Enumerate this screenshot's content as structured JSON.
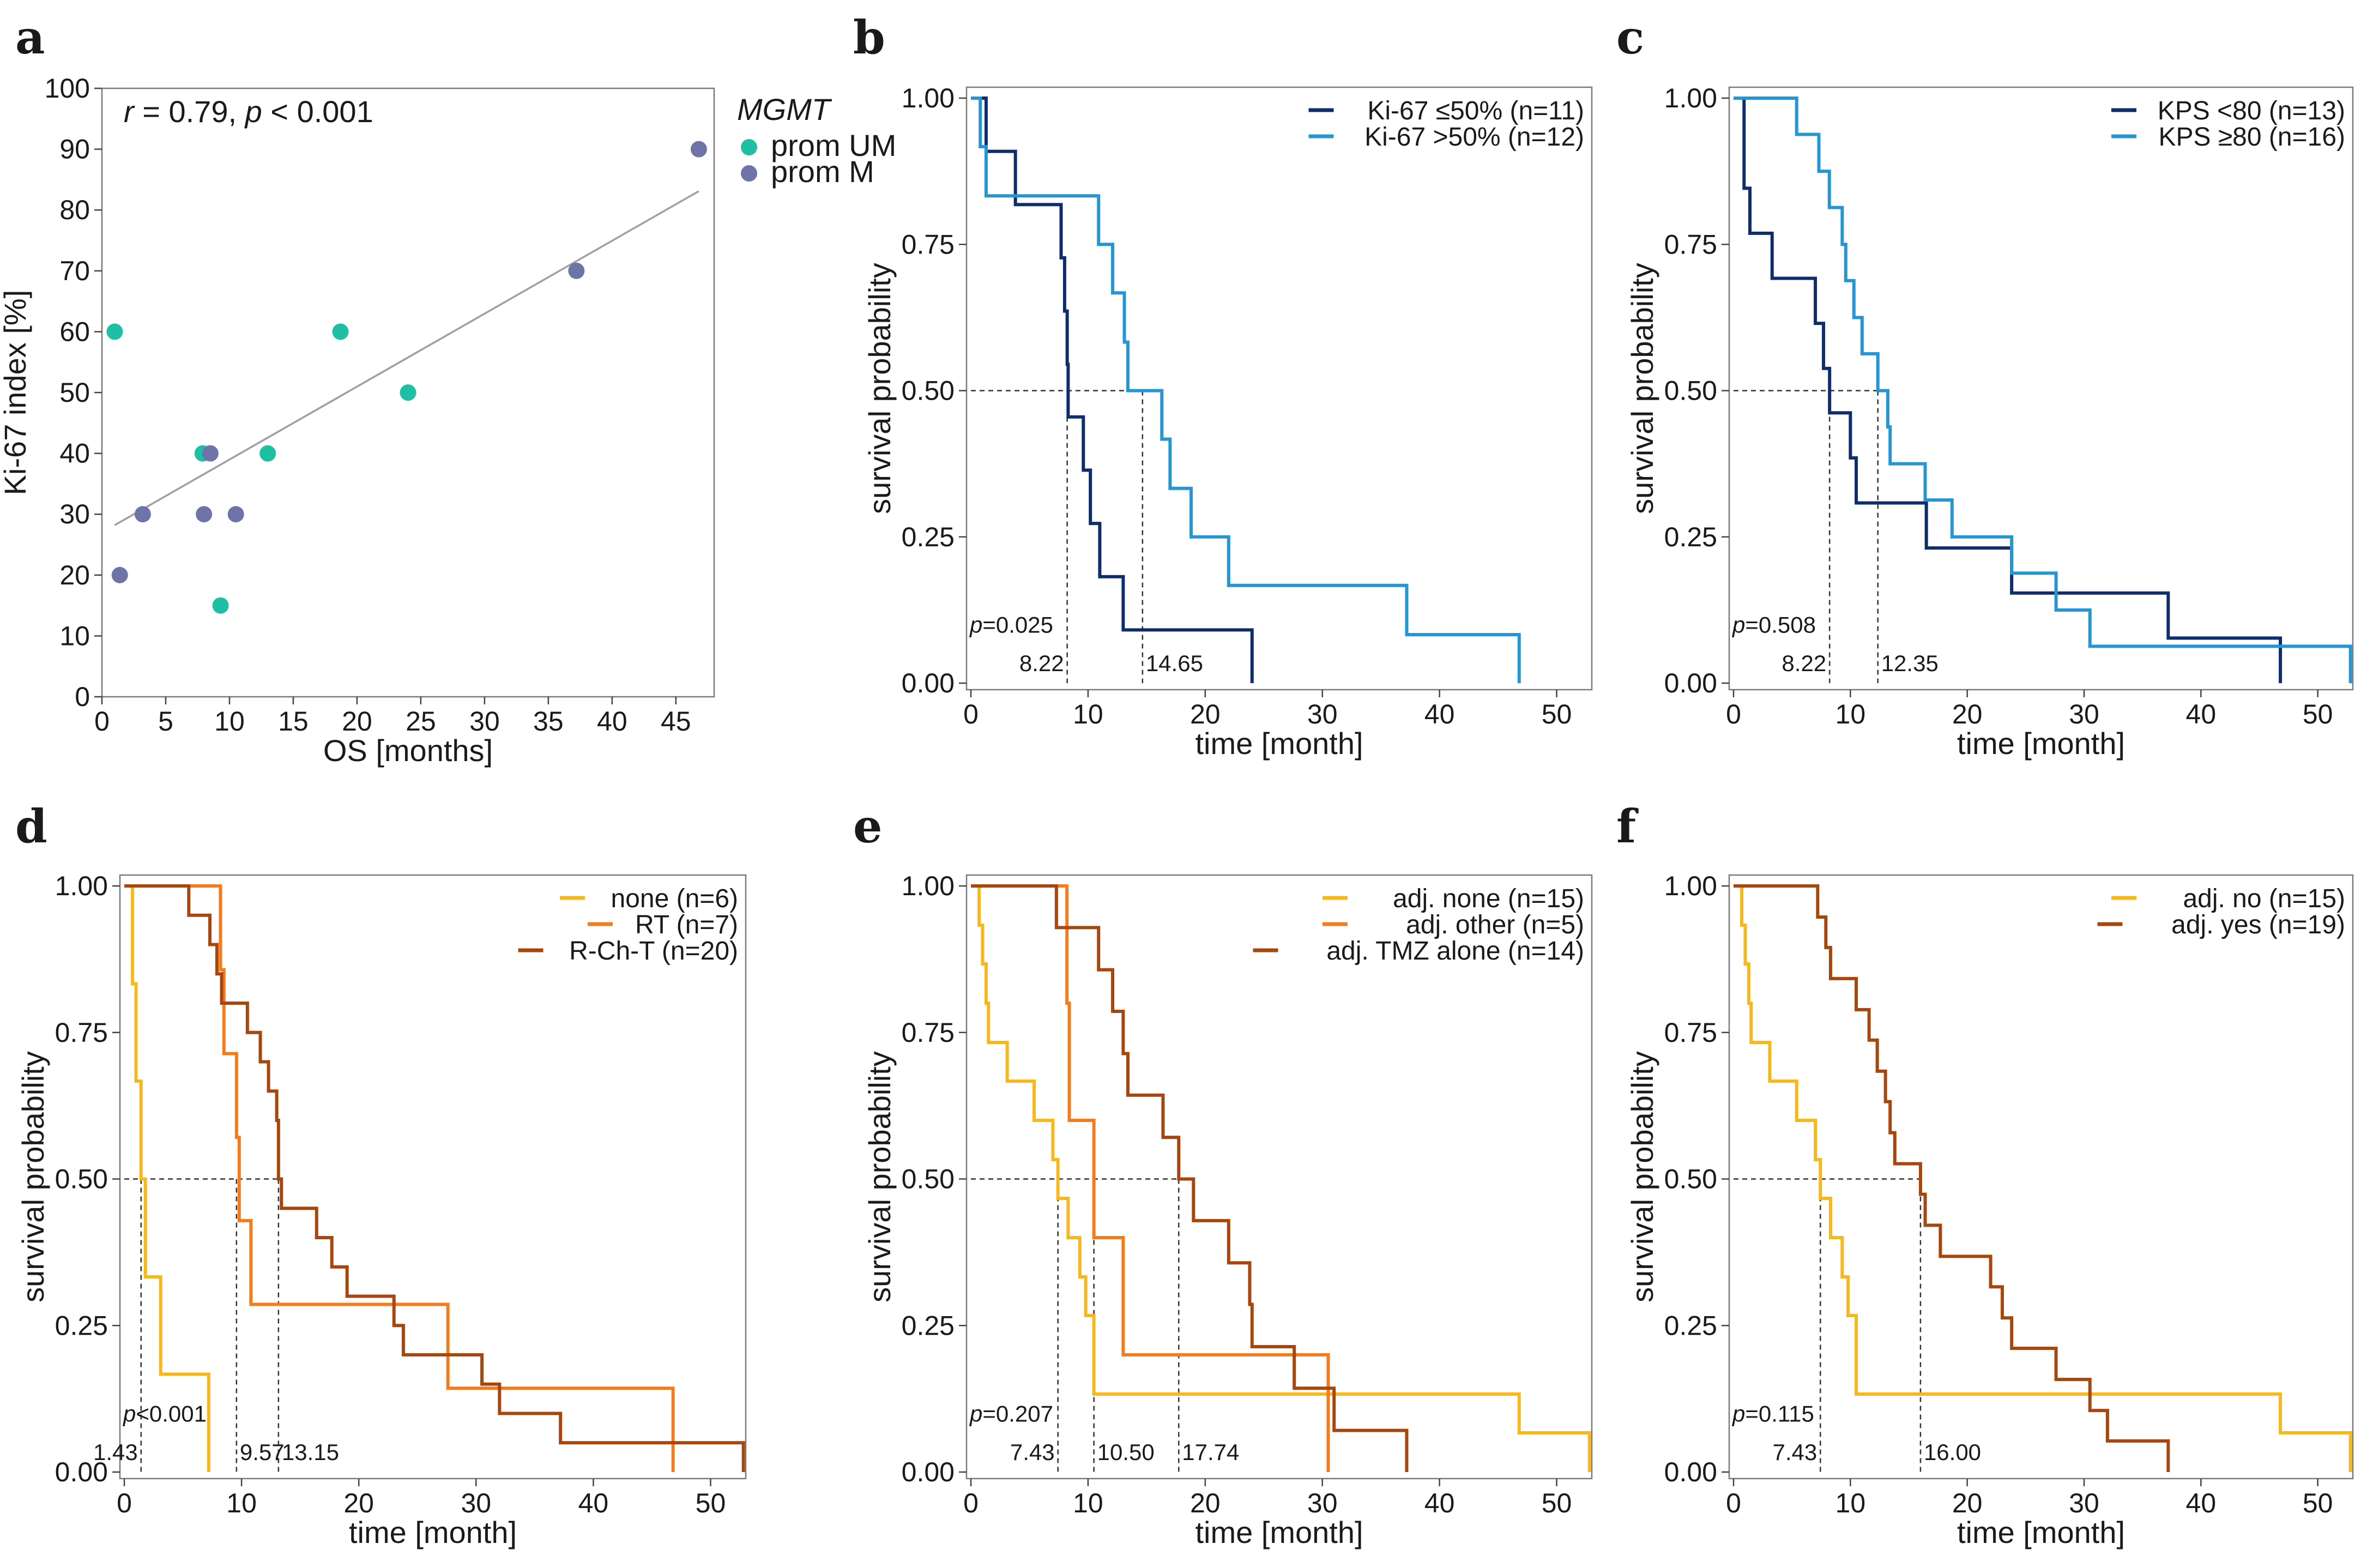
{
  "chart_data": [
    {
      "panel": "a",
      "type": "scatter",
      "xlabel": "OS [months]",
      "ylabel": "Ki-67 index [%]",
      "xlim": [
        0,
        48
      ],
      "ylim": [
        0,
        100
      ],
      "xticks": [
        0,
        5,
        10,
        15,
        20,
        25,
        30,
        35,
        40,
        45
      ],
      "yticks": [
        0,
        10,
        20,
        30,
        40,
        50,
        60,
        70,
        80,
        90,
        100
      ],
      "annotation_r": "r",
      "annotation_rest": " = 0.79, ",
      "annotation_p": "p",
      "annotation_pval": " < 0.001",
      "legend_title": "MGMT",
      "series": [
        {
          "name": "prom UM",
          "color": "#1fbfa3",
          "points": [
            [
              1.0,
              60
            ],
            [
              7.9,
              40
            ],
            [
              9.3,
              15
            ],
            [
              13.0,
              40
            ],
            [
              18.7,
              60
            ],
            [
              24.0,
              50
            ]
          ]
        },
        {
          "name": "prom M",
          "color": "#6f74a8",
          "points": [
            [
              1.4,
              20
            ],
            [
              3.2,
              30
            ],
            [
              8.0,
              30
            ],
            [
              8.5,
              40
            ],
            [
              10.5,
              30
            ],
            [
              37.2,
              70
            ],
            [
              46.8,
              90
            ]
          ]
        }
      ],
      "fit": {
        "from": [
          1.0,
          28.2
        ],
        "to": [
          46.8,
          83.1
        ],
        "color": "#a0a0a0"
      }
    },
    {
      "panel": "b",
      "type": "line",
      "xlabel": "time [month]",
      "ylabel": "survival probability",
      "xlim": [
        0,
        53
      ],
      "ylim": [
        0,
        1
      ],
      "xticks": [
        0,
        10,
        20,
        30,
        40,
        50
      ],
      "yticks": [
        "0.00",
        "0.25",
        "0.50",
        "0.75",
        "1.00"
      ],
      "pvalue_prefix": "p",
      "pvalue": "=0.025",
      "medians": [
        8.22,
        14.65
      ],
      "median_labels": [
        "8.22",
        "14.65"
      ],
      "series": [
        {
          "name": "Ki-67 ≤50% (n=11)",
          "color": "#0f2d6b",
          "steps": [
            [
              0,
              1.0
            ],
            [
              1.3,
              0.909
            ],
            [
              3.8,
              0.818
            ],
            [
              7.7,
              0.727
            ],
            [
              8.0,
              0.636
            ],
            [
              8.22,
              0.545
            ],
            [
              8.3,
              0.455
            ],
            [
              9.6,
              0.364
            ],
            [
              10.2,
              0.273
            ],
            [
              11.0,
              0.182
            ],
            [
              13.0,
              0.091
            ],
            [
              24.0,
              0.0
            ]
          ]
        },
        {
          "name": "Ki-67 >50% (n=12)",
          "color": "#2596d1",
          "steps": [
            [
              0,
              1.0
            ],
            [
              0.8,
              0.917
            ],
            [
              1.3,
              0.833
            ],
            [
              10.9,
              0.75
            ],
            [
              12.1,
              0.667
            ],
            [
              13.1,
              0.583
            ],
            [
              13.4,
              0.5
            ],
            [
              16.3,
              0.417
            ],
            [
              17.0,
              0.333
            ],
            [
              18.8,
              0.25
            ],
            [
              22.0,
              0.167
            ],
            [
              37.2,
              0.083
            ],
            [
              46.8,
              0.0
            ]
          ]
        }
      ]
    },
    {
      "panel": "c",
      "type": "line",
      "xlabel": "time [month]",
      "ylabel": "survival probability",
      "xlim": [
        0,
        53
      ],
      "ylim": [
        0,
        1
      ],
      "xticks": [
        0,
        10,
        20,
        30,
        40,
        50
      ],
      "yticks": [
        "0.00",
        "0.25",
        "0.50",
        "0.75",
        "1.00"
      ],
      "pvalue_prefix": "p",
      "pvalue": "=0.508",
      "medians": [
        8.22,
        12.35
      ],
      "median_labels": [
        "8.22",
        "12.35"
      ],
      "series": [
        {
          "name": "KPS <80 (n=13)",
          "color": "#0f2d6b",
          "steps": [
            [
              0,
              1.0
            ],
            [
              0.9,
              0.846
            ],
            [
              1.4,
              0.769
            ],
            [
              3.3,
              0.692
            ],
            [
              7.0,
              0.615
            ],
            [
              7.7,
              0.538
            ],
            [
              8.22,
              0.462
            ],
            [
              10.0,
              0.385
            ],
            [
              10.5,
              0.308
            ],
            [
              16.5,
              0.231
            ],
            [
              23.8,
              0.154
            ],
            [
              37.2,
              0.077
            ],
            [
              46.8,
              0.0
            ]
          ]
        },
        {
          "name": "KPS ≥80 (n=16)",
          "color": "#2596d1",
          "steps": [
            [
              0,
              1.0
            ],
            [
              5.4,
              0.938
            ],
            [
              7.3,
              0.875
            ],
            [
              8.2,
              0.813
            ],
            [
              9.3,
              0.75
            ],
            [
              9.6,
              0.688
            ],
            [
              10.3,
              0.625
            ],
            [
              11.0,
              0.563
            ],
            [
              12.35,
              0.5
            ],
            [
              13.2,
              0.438
            ],
            [
              13.4,
              0.375
            ],
            [
              16.4,
              0.313
            ],
            [
              18.7,
              0.25
            ],
            [
              23.8,
              0.188
            ],
            [
              27.6,
              0.125
            ],
            [
              30.5,
              0.063
            ],
            [
              52.8,
              0.0
            ]
          ]
        }
      ]
    },
    {
      "panel": "d",
      "type": "line",
      "xlabel": "time [month]",
      "ylabel": "survival probability",
      "xlim": [
        0,
        53
      ],
      "ylim": [
        0,
        1
      ],
      "xticks": [
        0,
        10,
        20,
        30,
        40,
        50
      ],
      "yticks": [
        "0.00",
        "0.25",
        "0.50",
        "0.75",
        "1.00"
      ],
      "pvalue_prefix": "p",
      "pvalue": "<0.001",
      "medians": [
        1.43,
        9.57,
        13.15
      ],
      "median_labels": [
        "1.43",
        "9.57",
        "13.15"
      ],
      "series": [
        {
          "name": "none (n=6)",
          "color": "#f7b81b",
          "steps": [
            [
              0,
              1.0
            ],
            [
              0.7,
              0.833
            ],
            [
              1.0,
              0.667
            ],
            [
              1.43,
              0.5
            ],
            [
              1.8,
              0.333
            ],
            [
              3.1,
              0.167
            ],
            [
              7.2,
              0.0
            ]
          ]
        },
        {
          "name": "RT (n=7)",
          "color": "#f47c1c",
          "steps": [
            [
              0,
              1.0
            ],
            [
              8.2,
              0.857
            ],
            [
              8.5,
              0.714
            ],
            [
              9.57,
              0.571
            ],
            [
              9.8,
              0.429
            ],
            [
              10.8,
              0.286
            ],
            [
              27.6,
              0.143
            ],
            [
              46.8,
              0.0
            ]
          ]
        },
        {
          "name": "R-Ch-T (n=20)",
          "color": "#a7460d",
          "steps": [
            [
              0,
              1.0
            ],
            [
              5.5,
              0.95
            ],
            [
              7.3,
              0.9
            ],
            [
              7.9,
              0.85
            ],
            [
              8.3,
              0.8
            ],
            [
              10.5,
              0.75
            ],
            [
              11.6,
              0.7
            ],
            [
              12.3,
              0.65
            ],
            [
              13.0,
              0.6
            ],
            [
              13.15,
              0.5
            ],
            [
              13.4,
              0.45
            ],
            [
              16.4,
              0.4
            ],
            [
              17.7,
              0.35
            ],
            [
              19.0,
              0.3
            ],
            [
              23.0,
              0.25
            ],
            [
              23.8,
              0.2
            ],
            [
              30.5,
              0.15
            ],
            [
              32.0,
              0.1
            ],
            [
              37.2,
              0.05
            ],
            [
              52.8,
              0.0
            ]
          ]
        }
      ]
    },
    {
      "panel": "e",
      "type": "line",
      "xlabel": "time [month]",
      "ylabel": "survival probability",
      "xlim": [
        0,
        53
      ],
      "ylim": [
        0,
        1
      ],
      "xticks": [
        0,
        10,
        20,
        30,
        40,
        50
      ],
      "yticks": [
        "0.00",
        "0.25",
        "0.50",
        "0.75",
        "1.00"
      ],
      "pvalue_prefix": "p",
      "pvalue": "=0.207",
      "medians": [
        7.43,
        10.5,
        17.74
      ],
      "median_labels": [
        "7.43",
        "10.50",
        "17.74"
      ],
      "series": [
        {
          "name": "adj. none (n=15)",
          "color": "#f7b81b",
          "steps": [
            [
              0,
              1.0
            ],
            [
              0.7,
              0.933
            ],
            [
              1.0,
              0.867
            ],
            [
              1.3,
              0.8
            ],
            [
              1.5,
              0.733
            ],
            [
              3.1,
              0.667
            ],
            [
              5.4,
              0.6
            ],
            [
              7.0,
              0.533
            ],
            [
              7.43,
              0.467
            ],
            [
              8.3,
              0.4
            ],
            [
              9.3,
              0.333
            ],
            [
              9.8,
              0.267
            ],
            [
              10.5,
              0.133
            ],
            [
              46.8,
              0.067
            ],
            [
              52.8,
              0.0
            ]
          ]
        },
        {
          "name": "adj. other (n=5)",
          "color": "#f47c1c",
          "steps": [
            [
              0,
              1.0
            ],
            [
              8.2,
              0.8
            ],
            [
              8.4,
              0.6
            ],
            [
              10.5,
              0.4
            ],
            [
              13.0,
              0.2
            ],
            [
              30.5,
              0.0
            ]
          ]
        },
        {
          "name": "adj. TMZ alone (n=14)",
          "color": "#a7460d",
          "steps": [
            [
              0,
              1.0
            ],
            [
              7.3,
              0.929
            ],
            [
              10.9,
              0.857
            ],
            [
              12.1,
              0.786
            ],
            [
              13.0,
              0.714
            ],
            [
              13.4,
              0.643
            ],
            [
              16.4,
              0.571
            ],
            [
              17.74,
              0.5
            ],
            [
              19.0,
              0.429
            ],
            [
              22.0,
              0.357
            ],
            [
              23.8,
              0.286
            ],
            [
              24.0,
              0.214
            ],
            [
              27.6,
              0.143
            ],
            [
              31.0,
              0.071
            ],
            [
              37.2,
              0.0
            ]
          ]
        }
      ]
    },
    {
      "panel": "f",
      "type": "line",
      "xlabel": "time [month]",
      "ylabel": "survival probability",
      "xlim": [
        0,
        53
      ],
      "ylim": [
        0,
        1
      ],
      "xticks": [
        0,
        10,
        20,
        30,
        40,
        50
      ],
      "yticks": [
        "0.00",
        "0.25",
        "0.50",
        "0.75",
        "1.00"
      ],
      "pvalue_prefix": "p",
      "pvalue": "=0.115",
      "medians": [
        7.43,
        16.0
      ],
      "median_labels": [
        "7.43",
        "16.00"
      ],
      "series": [
        {
          "name": "adj. no (n=15)",
          "color": "#f7b81b",
          "steps": [
            [
              0,
              1.0
            ],
            [
              0.7,
              0.933
            ],
            [
              1.0,
              0.867
            ],
            [
              1.3,
              0.8
            ],
            [
              1.5,
              0.733
            ],
            [
              3.1,
              0.667
            ],
            [
              5.4,
              0.6
            ],
            [
              7.0,
              0.533
            ],
            [
              7.43,
              0.467
            ],
            [
              8.3,
              0.4
            ],
            [
              9.3,
              0.333
            ],
            [
              9.8,
              0.267
            ],
            [
              10.5,
              0.133
            ],
            [
              46.8,
              0.067
            ],
            [
              52.8,
              0.0
            ]
          ]
        },
        {
          "name": "adj. yes (n=19)",
          "color": "#a7460d",
          "steps": [
            [
              0,
              1.0
            ],
            [
              7.2,
              0.947
            ],
            [
              7.9,
              0.895
            ],
            [
              8.3,
              0.842
            ],
            [
              10.5,
              0.789
            ],
            [
              11.6,
              0.737
            ],
            [
              12.3,
              0.684
            ],
            [
              13.0,
              0.632
            ],
            [
              13.4,
              0.579
            ],
            [
              13.8,
              0.526
            ],
            [
              16.0,
              0.474
            ],
            [
              16.4,
              0.421
            ],
            [
              17.7,
              0.368
            ],
            [
              22.0,
              0.316
            ],
            [
              23.0,
              0.263
            ],
            [
              23.8,
              0.211
            ],
            [
              27.6,
              0.158
            ],
            [
              30.5,
              0.105
            ],
            [
              32.0,
              0.053
            ],
            [
              37.2,
              0.0
            ]
          ]
        }
      ]
    }
  ]
}
